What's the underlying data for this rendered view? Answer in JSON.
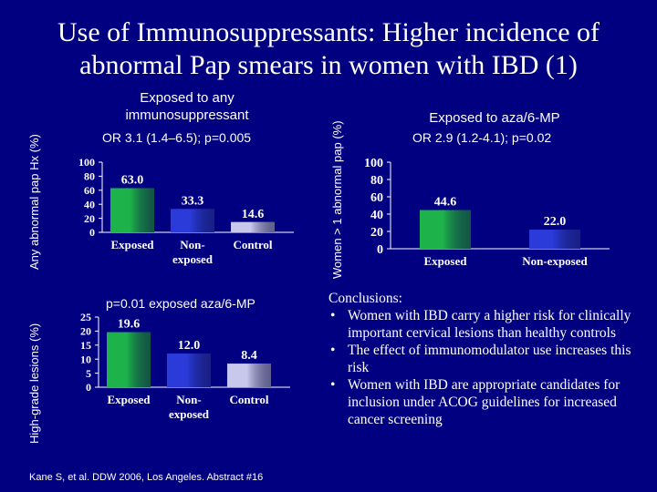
{
  "slide": {
    "title": "Use of Immunosuppressants: Higher incidence of abnormal Pap smears in women with IBD (1)",
    "citation": "Kane S, et al. DDW 2006, Los Angeles. Abstract #16",
    "conclusions": {
      "heading": "Conclusions:",
      "items": [
        "Women with IBD carry a higher risk for clinically important cervical lesions than healthy controls",
        "The effect of immunomodulator use increases this risk",
        "Women with IBD are appropriate candidates for inclusion under ACOG guidelines for increased cancer screening"
      ]
    },
    "colors": {
      "background": "#000080",
      "exposed_bar": "#1db34a",
      "nonexposed_bar": "#2a3bd9",
      "control_bar": "#c8c8ec",
      "text": "#ffffff"
    }
  },
  "chart_data": [
    {
      "type": "bar",
      "title": "Exposed to any immunosuppressant",
      "subtitle": "OR 3.1 (1.4–6.5); p=0.005",
      "ylabel": "Any abnormal pap Hx (%)",
      "categories": [
        "Exposed",
        "Non-exposed",
        "Control"
      ],
      "values": [
        63.0,
        33.3,
        14.6
      ],
      "value_labels": [
        "63.0",
        "33.3",
        "14.6"
      ],
      "yticks": [
        "100",
        "80",
        "60",
        "40",
        "20",
        "0"
      ],
      "ylim": [
        0,
        100
      ]
    },
    {
      "type": "bar",
      "title": "Exposed to aza/6-MP",
      "subtitle": "OR 2.9 (1.2-4.1); p=0.02",
      "ylabel": "Women > 1 abnormal pap (%)",
      "categories": [
        "Exposed",
        "Non-exposed"
      ],
      "values": [
        44.6,
        22.0
      ],
      "value_labels": [
        "44.6",
        "22.0"
      ],
      "yticks": [
        "100",
        "80",
        "60",
        "40",
        "20",
        "0"
      ],
      "ylim": [
        0,
        100
      ]
    },
    {
      "type": "bar",
      "title": "",
      "subtitle": "p=0.01 exposed aza/6-MP",
      "ylabel": "High-grade lesions (%)",
      "categories": [
        "Exposed",
        "Non-exposed",
        "Control"
      ],
      "values": [
        19.6,
        12.0,
        8.4
      ],
      "value_labels": [
        "19.6",
        "12.0",
        "8.4"
      ],
      "yticks": [
        "25",
        "20",
        "15",
        "10",
        "5",
        "0"
      ],
      "ylim": [
        0,
        25
      ]
    }
  ]
}
